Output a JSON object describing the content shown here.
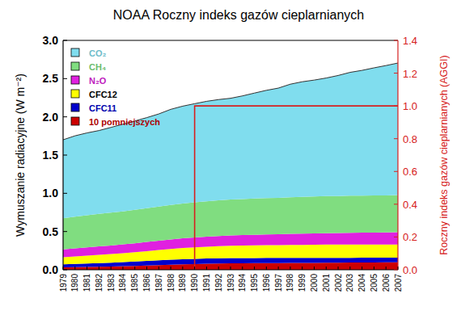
{
  "chart_data": {
    "type": "area",
    "stacked": true,
    "title": "NOAA Roczny indeks gazów cieplarnianych",
    "y_label": "Wymuszanie radiacyjne (W m⁻²)",
    "y2_label": "Roczny indeks gazów cieplarnianych (AGGI)",
    "categories": [
      "1979",
      "1980",
      "1981",
      "1982",
      "1983",
      "1984",
      "1985",
      "1986",
      "1987",
      "1988",
      "1989",
      "1990",
      "1991",
      "1992",
      "1993",
      "1994",
      "1995",
      "1996",
      "1997",
      "1998",
      "1999",
      "2000",
      "2001",
      "2002",
      "2003",
      "2004",
      "2005",
      "2006",
      "2007"
    ],
    "series": [
      {
        "name": "CO₂",
        "color": "#80ddee",
        "values": [
          1.027,
          1.058,
          1.077,
          1.089,
          1.115,
          1.14,
          1.162,
          1.184,
          1.211,
          1.25,
          1.274,
          1.291,
          1.307,
          1.317,
          1.325,
          1.349,
          1.38,
          1.41,
          1.435,
          1.479,
          1.505,
          1.522,
          1.545,
          1.576,
          1.614,
          1.638,
          1.669,
          1.698,
          1.727
        ]
      },
      {
        "name": "CH₄",
        "color": "#80dd80",
        "values": [
          0.406,
          0.413,
          0.42,
          0.426,
          0.429,
          0.432,
          0.437,
          0.442,
          0.447,
          0.451,
          0.455,
          0.459,
          0.463,
          0.467,
          0.47,
          0.472,
          0.474,
          0.475,
          0.476,
          0.479,
          0.482,
          0.484,
          0.484,
          0.484,
          0.485,
          0.485,
          0.485,
          0.485,
          0.486
        ]
      },
      {
        "name": "N₂O",
        "color": "#e020e0",
        "values": [
          0.104,
          0.107,
          0.109,
          0.111,
          0.113,
          0.115,
          0.117,
          0.12,
          0.122,
          0.125,
          0.127,
          0.129,
          0.131,
          0.133,
          0.134,
          0.136,
          0.138,
          0.14,
          0.142,
          0.144,
          0.146,
          0.148,
          0.15,
          0.152,
          0.154,
          0.155,
          0.157,
          0.159,
          0.161
        ]
      },
      {
        "name": "CFC12",
        "color": "#ffff00",
        "values": [
          0.092,
          0.097,
          0.102,
          0.107,
          0.112,
          0.117,
          0.123,
          0.129,
          0.135,
          0.141,
          0.146,
          0.15,
          0.154,
          0.158,
          0.161,
          0.163,
          0.165,
          0.167,
          0.168,
          0.169,
          0.17,
          0.171,
          0.172,
          0.172,
          0.172,
          0.172,
          0.172,
          0.171,
          0.171
        ]
      },
      {
        "name": "CFC11",
        "color": "#0000cc",
        "values": [
          0.04,
          0.043,
          0.045,
          0.048,
          0.05,
          0.053,
          0.056,
          0.059,
          0.062,
          0.065,
          0.067,
          0.068,
          0.069,
          0.069,
          0.069,
          0.069,
          0.068,
          0.068,
          0.067,
          0.067,
          0.066,
          0.065,
          0.065,
          0.064,
          0.063,
          0.063,
          0.062,
          0.061,
          0.061
        ]
      },
      {
        "name": "10 pomniejszych",
        "color": "#cc0000",
        "values": [
          0.031,
          0.034,
          0.037,
          0.04,
          0.043,
          0.047,
          0.051,
          0.056,
          0.061,
          0.066,
          0.071,
          0.075,
          0.079,
          0.082,
          0.084,
          0.085,
          0.086,
          0.087,
          0.088,
          0.089,
          0.09,
          0.091,
          0.092,
          0.093,
          0.094,
          0.095,
          0.096,
          0.097,
          0.098
        ]
      }
    ],
    "ylim": [
      0,
      3
    ],
    "yticks": [
      {
        "value": 0,
        "label": "0.0"
      },
      0.5,
      {
        "value": 1,
        "label": "1.0"
      },
      1.5,
      {
        "value": 2,
        "label": "2.0"
      },
      2.5,
      {
        "value": 3,
        "label": "3.0"
      }
    ],
    "y2lim": [
      0,
      1.4
    ],
    "y2ticks": [
      {
        "value": 0,
        "label": "0.0"
      },
      0.2,
      0.4,
      0.6,
      0.8,
      {
        "value": 1,
        "label": "1.0"
      },
      1.2,
      1.4
    ],
    "baseline": {
      "category": "1990",
      "value": 1.0,
      "color": "#d62020"
    },
    "legend": "upper left"
  }
}
